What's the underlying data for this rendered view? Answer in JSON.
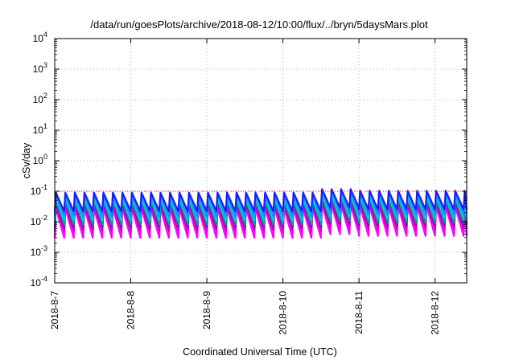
{
  "chart_data": {
    "type": "line",
    "title": "/data/run/goesPlots/archive/2018-08-12/10:00/flux/../bryn/5daysMars.plot",
    "xlabel": "Coordinated Universal Time (UTC)",
    "ylabel": "cSv/day",
    "yscale": "log",
    "ylim": [
      0.0001,
      10000
    ],
    "y_ticks": [
      {
        "base": "10",
        "exp": "-4",
        "value": 0.0001
      },
      {
        "base": "10",
        "exp": "-3",
        "value": 0.001
      },
      {
        "base": "10",
        "exp": "-2",
        "value": 0.01
      },
      {
        "base": "10",
        "exp": "-1",
        "value": 0.1
      },
      {
        "base": "10",
        "exp": "0",
        "value": 1
      },
      {
        "base": "10",
        "exp": "1",
        "value": 10
      },
      {
        "base": "10",
        "exp": "2",
        "value": 100
      },
      {
        "base": "10",
        "exp": "3",
        "value": 1000
      },
      {
        "base": "10",
        "exp": "4",
        "value": 10000
      }
    ],
    "xlim": [
      "2018-08-07T00:00",
      "2018-08-12T10:00"
    ],
    "x_ticks": [
      {
        "label": "2018-8-7",
        "value": "2018-08-07T00:00"
      },
      {
        "label": "2018-8-8",
        "value": "2018-08-08T00:00"
      },
      {
        "label": "2018-8-9",
        "value": "2018-08-09T00:00"
      },
      {
        "label": "2018-8-10",
        "value": "2018-08-10T00:00"
      },
      {
        "label": "2018-8-11",
        "value": "2018-08-11T00:00"
      },
      {
        "label": "2018-8-12",
        "value": "2018-08-12T00:00"
      }
    ],
    "grid": true,
    "reference_line": {
      "value": 0.1,
      "color": "#ff0000",
      "style": "dotted"
    },
    "series_style": "sawtooth",
    "sawtooth_cycles_per_day": 8,
    "series": [
      {
        "color": "#1a1aff",
        "peak": 0.09,
        "trough": 0.022
      },
      {
        "color": "#2288ff",
        "peak": 0.08,
        "trough": 0.015
      },
      {
        "color": "#00ccdd",
        "peak": 0.06,
        "trough": 0.011
      },
      {
        "color": "#009999",
        "peak": 0.05,
        "trough": 0.008
      },
      {
        "color": "#880088",
        "peak": 0.045,
        "trough": 0.007
      },
      {
        "color": "#cc00cc",
        "peak": 0.035,
        "trough": 0.005
      },
      {
        "color": "#ff00ff",
        "peak": 0.028,
        "trough": 0.003
      }
    ],
    "segments": [
      {
        "start": "2018-08-07T00:00",
        "end": "2018-08-10T12:00",
        "factor": 1.0
      },
      {
        "start": "2018-08-10T12:00",
        "end": "2018-08-11T00:00",
        "factor": 1.3
      },
      {
        "start": "2018-08-11T00:00",
        "end": "2018-08-12T10:00",
        "factor": 1.15
      }
    ]
  }
}
